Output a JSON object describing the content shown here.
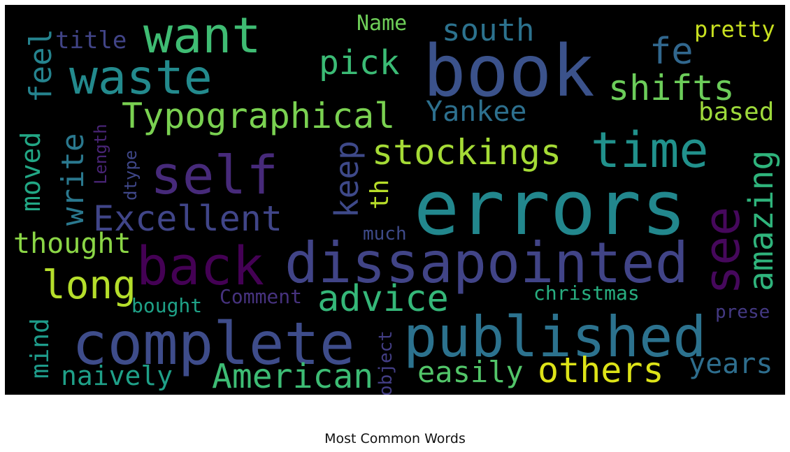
{
  "chart_data": {
    "type": "wordcloud",
    "title": "Most Common Words",
    "background": "#000000",
    "colormap": "viridis",
    "words": [
      {
        "text": "errors",
        "color": "#22878d"
      },
      {
        "text": "book",
        "color": "#3b528b"
      },
      {
        "text": "dissapointed",
        "color": "#414487"
      },
      {
        "text": "published",
        "color": "#2c728e"
      },
      {
        "text": "complete",
        "color": "#3e4c8a"
      },
      {
        "text": "self",
        "color": "#472a7a"
      },
      {
        "text": "back",
        "color": "#440154"
      },
      {
        "text": "time",
        "color": "#21918c"
      },
      {
        "text": "want",
        "color": "#3fbc73"
      },
      {
        "text": "waste",
        "color": "#238a8d"
      },
      {
        "text": "see",
        "color": "#46085c"
      },
      {
        "text": "Typographical",
        "color": "#7ad151"
      },
      {
        "text": "Excellent",
        "color": "#404588"
      },
      {
        "text": "stockings",
        "color": "#a5db36"
      },
      {
        "text": "advice",
        "color": "#35b779"
      },
      {
        "text": "others",
        "color": "#dde318"
      },
      {
        "text": "American",
        "color": "#3dbc74"
      },
      {
        "text": "long",
        "color": "#b5de2b"
      },
      {
        "text": "shifts",
        "color": "#6ccd5a"
      },
      {
        "text": "amazing",
        "color": "#2fb47c"
      },
      {
        "text": "pick",
        "color": "#3bbb75"
      },
      {
        "text": "keep",
        "color": "#3e4989"
      },
      {
        "text": "write",
        "color": "#2a788e"
      },
      {
        "text": "feel",
        "color": "#25838e"
      },
      {
        "text": "fe",
        "color": "#31678e"
      },
      {
        "text": "easily",
        "color": "#52c569"
      },
      {
        "text": "years",
        "color": "#2e6e8e"
      },
      {
        "text": "thought",
        "color": "#8bd646"
      },
      {
        "text": "naively",
        "color": "#1fa088"
      },
      {
        "text": "Yankee",
        "color": "#2d708e"
      },
      {
        "text": "south",
        "color": "#2c728e"
      },
      {
        "text": "mind",
        "color": "#1e9b8a"
      },
      {
        "text": "moved",
        "color": "#22a785"
      },
      {
        "text": "title",
        "color": "#414487"
      },
      {
        "text": "Name",
        "color": "#6ece58"
      },
      {
        "text": "pretty",
        "color": "#c8e020"
      },
      {
        "text": "based",
        "color": "#9dd93b"
      },
      {
        "text": "th",
        "color": "#b8de29"
      },
      {
        "text": "bought",
        "color": "#1fa187"
      },
      {
        "text": "christmas",
        "color": "#28ae80"
      },
      {
        "text": "Comment",
        "color": "#46327e"
      },
      {
        "text": "prese",
        "color": "#443983"
      },
      {
        "text": "much",
        "color": "#3e4a89"
      },
      {
        "text": "object",
        "color": "#433e85"
      },
      {
        "text": "Length",
        "color": "#482475"
      },
      {
        "text": "dtype",
        "color": "#3f4788"
      }
    ]
  }
}
